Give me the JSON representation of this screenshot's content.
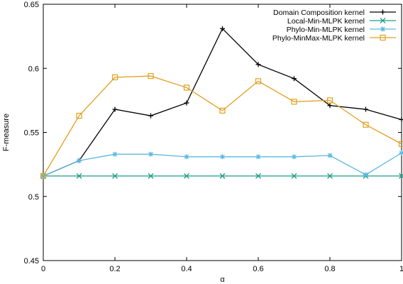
{
  "chart_data": {
    "type": "line",
    "xlabel": "α",
    "ylabel": "F-measure",
    "xlim": [
      0,
      1
    ],
    "ylim": [
      0.45,
      0.65
    ],
    "xticks": [
      0,
      0.2,
      0.4,
      0.6,
      0.8,
      1
    ],
    "xtick_labels": [
      "0",
      "0.2",
      "0.4",
      "0.6",
      "0.8",
      "1"
    ],
    "yticks": [
      0.45,
      0.5,
      0.55,
      0.6,
      0.65
    ],
    "ytick_labels": [
      "0.45",
      "0.5",
      "0.55",
      "0.6",
      "0.65"
    ],
    "grid": false,
    "legend_position": "top-right",
    "x": [
      0,
      0.1,
      0.2,
      0.3,
      0.4,
      0.5,
      0.6,
      0.7,
      0.8,
      0.9,
      1.0
    ],
    "series": [
      {
        "name": "Domain Composition kernel",
        "color": "#000000",
        "marker": "plus",
        "values": [
          0.516,
          0.528,
          0.568,
          0.563,
          0.573,
          0.631,
          0.603,
          0.592,
          0.571,
          0.568,
          0.56
        ]
      },
      {
        "name": "Local-Min-MLPK kernel",
        "color": "#1f9e89",
        "marker": "cross",
        "values": [
          0.516,
          0.516,
          0.516,
          0.516,
          0.516,
          0.516,
          0.516,
          0.516,
          0.516,
          0.516,
          0.516
        ]
      },
      {
        "name": "Phylo-Min-MLPK kernel",
        "color": "#5bb8e0",
        "marker": "star",
        "values": [
          0.516,
          0.528,
          0.533,
          0.533,
          0.531,
          0.531,
          0.531,
          0.531,
          0.532,
          0.517,
          0.534
        ]
      },
      {
        "name": "Phylo-MinMax-MLPK kernel",
        "color": "#e0a020",
        "marker": "square",
        "values": [
          0.516,
          0.563,
          0.593,
          0.594,
          0.585,
          0.567,
          0.59,
          0.574,
          0.575,
          0.556,
          0.541
        ]
      }
    ]
  }
}
